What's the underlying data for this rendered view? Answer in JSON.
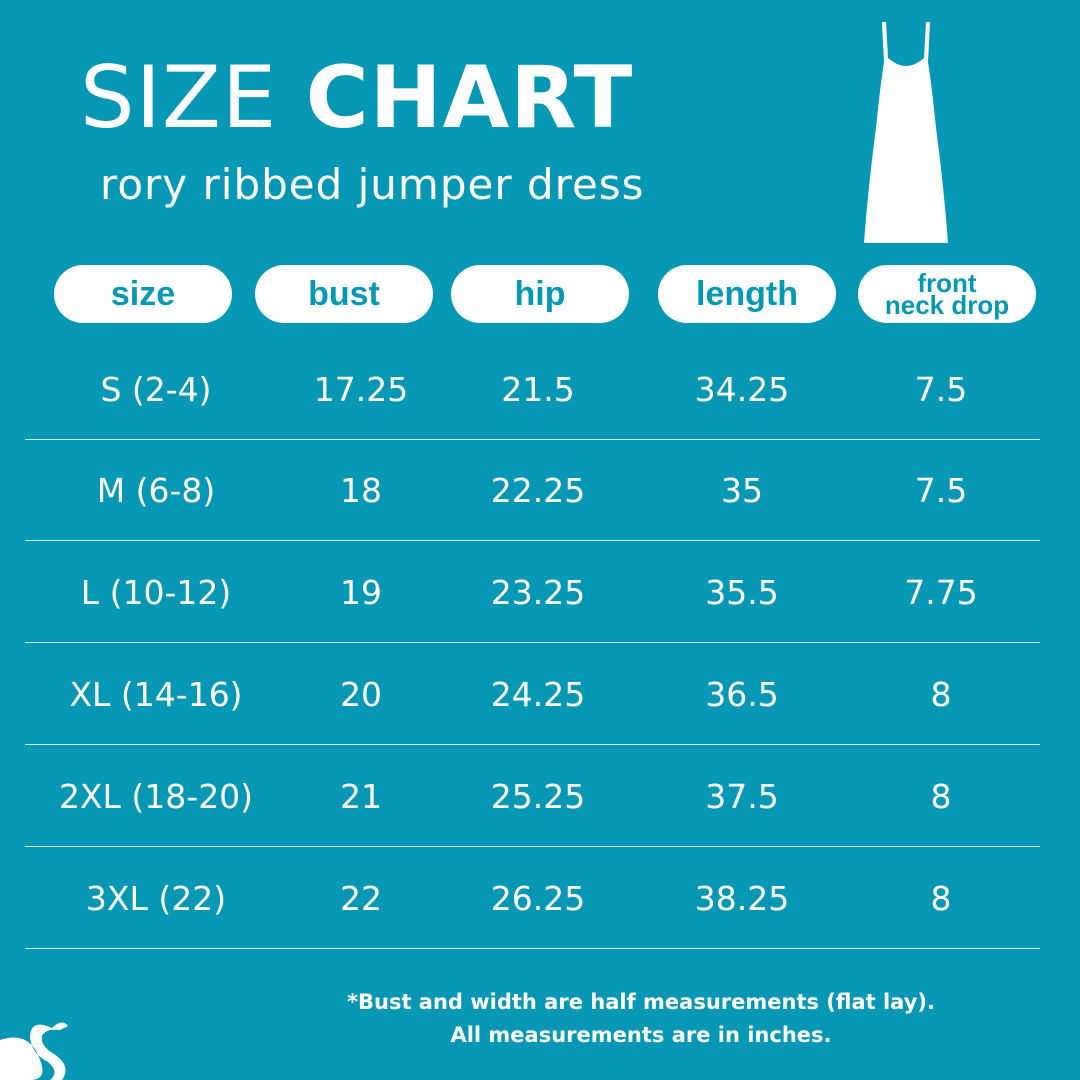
{
  "header": {
    "title_light": "SIZE",
    "title_bold": "CHART",
    "subtitle": "rory ribbed jumper dress"
  },
  "table": {
    "headers": [
      "size",
      "bust",
      "hip",
      "length",
      [
        "front",
        "neck drop"
      ]
    ],
    "rows": [
      [
        "S (2-4)",
        "17.25",
        "21.5",
        "34.25",
        "7.5"
      ],
      [
        "M (6-8)",
        "18",
        "22.25",
        "35",
        "7.5"
      ],
      [
        "L (10-12)",
        "19",
        "23.25",
        "35.5",
        "7.75"
      ],
      [
        "XL (14-16)",
        "20",
        "24.25",
        "36.5",
        "8"
      ],
      [
        "2XL (18-20)",
        "21",
        "25.25",
        "37.5",
        "8"
      ],
      [
        "3XL (22)",
        "22",
        "26.25",
        "38.25",
        "8"
      ]
    ]
  },
  "footer": {
    "notes": [
      "*Bust and width are half measurements (flat lay).",
      "All measurements are in inches."
    ]
  }
}
